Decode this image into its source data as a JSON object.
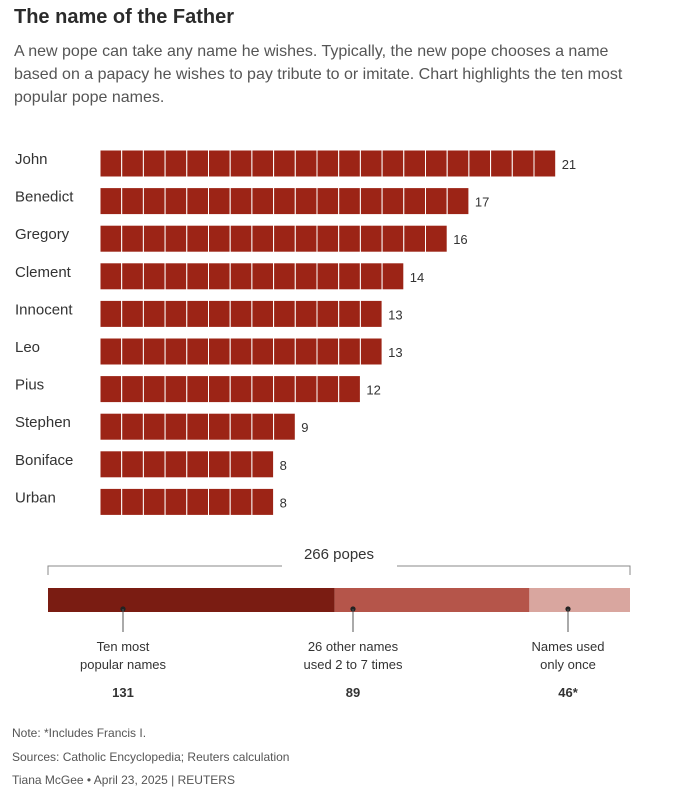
{
  "title": "The name of the Father",
  "subtitle": "A new pope can take any name he wishes. Typically, the new pope chooses a name based on a papacy he wishes to pay tribute to or imitate. Chart highlights the ten most popular pope names.",
  "colors": {
    "bar": "#9c2416",
    "bar_cell_border": "#ffffff",
    "segment_top_ten": "#7a1c12",
    "segment_others": "#b5554a",
    "segment_once": "#d9a69f"
  },
  "chart_data": [
    {
      "type": "bar",
      "orientation": "horizontal",
      "unit_squares": true,
      "categories": [
        "John",
        "Benedict",
        "Gregory",
        "Clement",
        "Innocent",
        "Leo",
        "Pius",
        "Stephen",
        "Boniface",
        "Urban"
      ],
      "values": [
        21,
        17,
        16,
        14,
        13,
        13,
        12,
        9,
        8,
        8
      ],
      "data_labels": [
        "21",
        "17",
        "16",
        "14",
        "13",
        "13",
        "12",
        "9",
        "8",
        "8"
      ]
    },
    {
      "type": "bar",
      "stacked": true,
      "total_label": "266 popes",
      "total": 266,
      "segments": [
        {
          "label_line1": "Ten most",
          "label_line2": "popular names",
          "value": 131,
          "value_label": "131"
        },
        {
          "label_line1": "26 other names",
          "label_line2": "used 2 to 7 times",
          "value": 89,
          "value_label": "89"
        },
        {
          "label_line1": "Names used",
          "label_line2": "only once",
          "value": 46,
          "value_label": "46*"
        }
      ]
    }
  ],
  "footer": {
    "note": "Note: *Includes Francis I.",
    "sources": "Sources: Catholic Encyclopedia; Reuters calculation",
    "credit": "Tiana McGee • April 23, 2025 | REUTERS"
  }
}
